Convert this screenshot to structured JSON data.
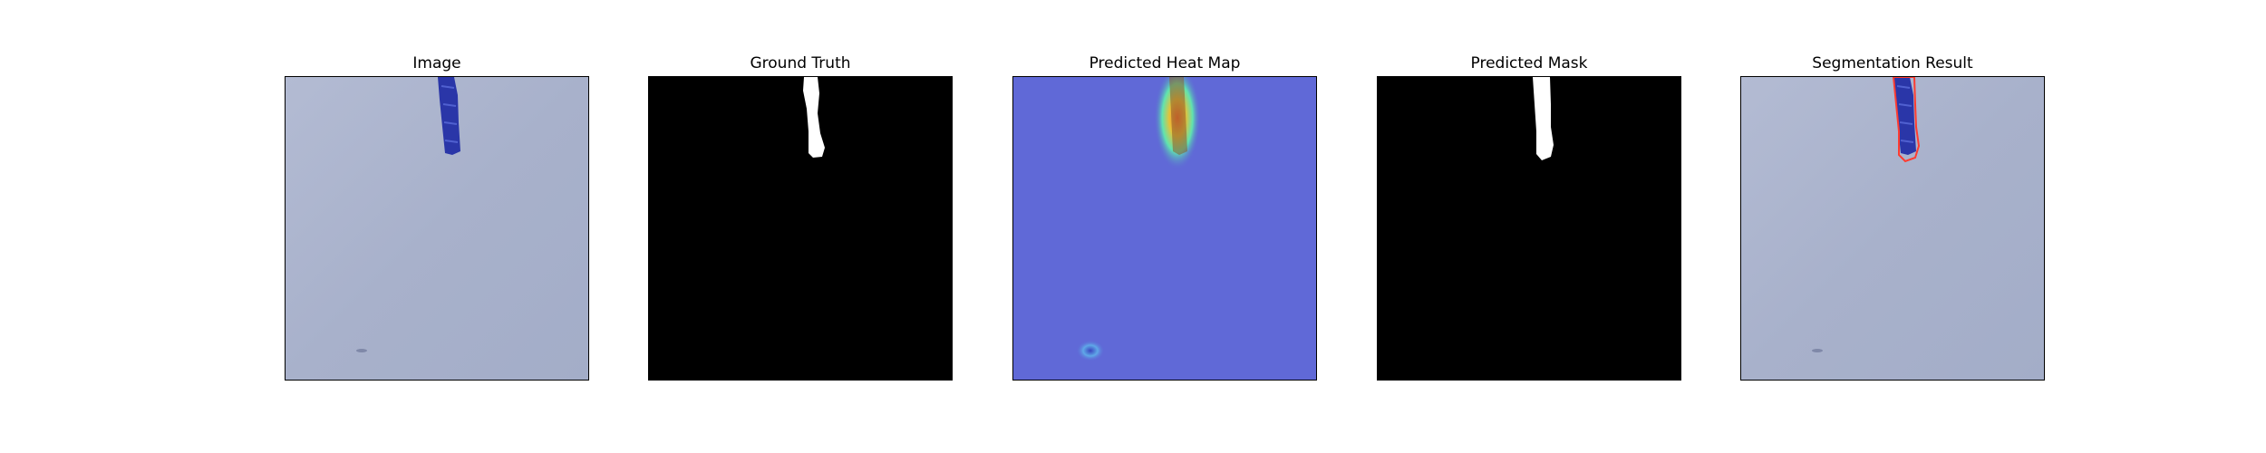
{
  "figure": {
    "panels": [
      {
        "title": "Image"
      },
      {
        "title": "Ground Truth"
      },
      {
        "title": "Predicted Heat Map"
      },
      {
        "title": "Predicted Mask"
      },
      {
        "title": "Segmentation Result"
      }
    ]
  },
  "colors": {
    "image_background": "#a9b2cc",
    "object": "#2a36a8",
    "mask_foreground": "#ffffff",
    "mask_background": "#000000",
    "heatmap_low": "#5b64d4",
    "heatmap_high": "#ff6a2a",
    "contour": "#ff3b30"
  }
}
